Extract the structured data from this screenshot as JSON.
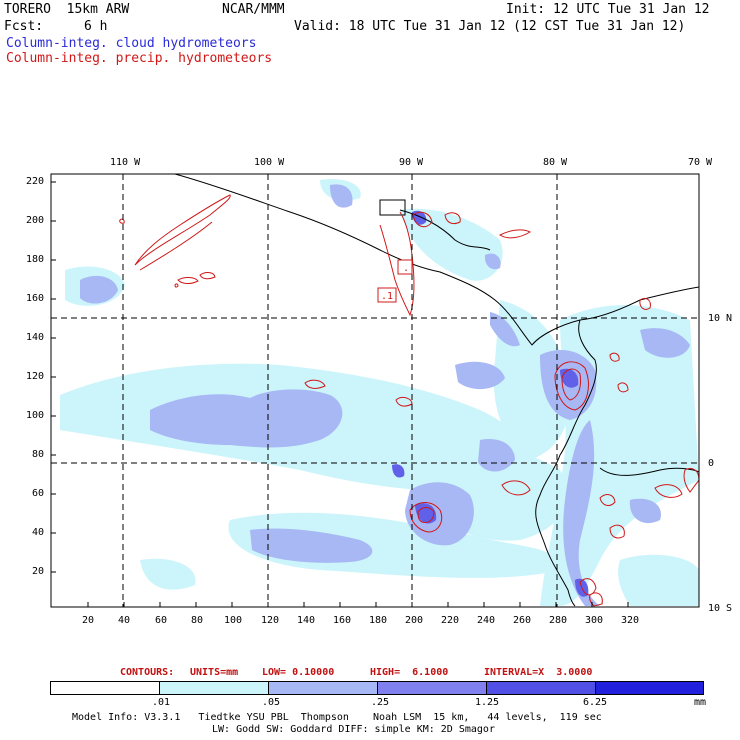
{
  "header": {
    "model": "TORERO  15km ARW",
    "center": "NCAR/MMM",
    "init": "Init: 12 UTC Tue 31 Jan 12",
    "fcst_label": "Fcst:",
    "fcst_value": "6 h",
    "valid": "Valid: 18 UTC Tue 31 Jan 12 (12 CST Tue 31 Jan 12)"
  },
  "fields": {
    "cloud": "Column-integ. cloud hydrometeors",
    "precip": "Column-integ. precip. hydrometeors",
    "cloud_color": "#2a2ad8",
    "precip_color": "#d01818"
  },
  "axes": {
    "lon_labels": [
      "110 W",
      "100 W",
      "90 W",
      "80 W",
      "70 W"
    ],
    "lat_labels": [
      "10 N",
      "0",
      "10 S"
    ],
    "y_ticks": [
      "220",
      "200",
      "180",
      "160",
      "140",
      "120",
      "100",
      "80",
      "60",
      "40",
      "20"
    ],
    "x_ticks": [
      "20",
      "40",
      "60",
      "80",
      "100",
      "120",
      "140",
      "160",
      "180",
      "200",
      "220",
      "240",
      "260",
      "280",
      "300",
      "320"
    ]
  },
  "map": {
    "contour_label_1": ".1",
    "contour_label_2": "."
  },
  "contours_line": {
    "label": "CONTOURS:",
    "units": "UNITS=mm",
    "low": "LOW= 0.10000",
    "high": "HIGH=  6.1000",
    "interval": "INTERVAL=X  3.0000"
  },
  "legend": {
    "labels": [
      ".01",
      ".05",
      ".25",
      "1.25",
      "6.25"
    ],
    "unit": "mm",
    "colors": [
      "#ffffff",
      "#ccf5fb",
      "#a8b8f4",
      "#8080ee",
      "#5050e6",
      "#2020dd"
    ]
  },
  "footer": {
    "line1": "Model Info: V3.3.1   Tiedtke YSU PBL  Thompson    Noah LSM  15 km,   44 levels,  119 sec",
    "line2": "LW: Godd SW: Goddard DIFF: simple KM: 2D Smagor"
  }
}
